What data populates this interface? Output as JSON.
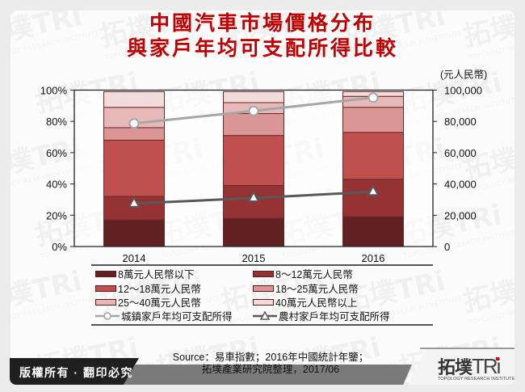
{
  "title": {
    "line1": "中國汽車市場價格分布",
    "line2": "與家戶年均可支配所得比較"
  },
  "chart_data": {
    "type": "bar",
    "subtype": "stacked_100_percent_with_secondary_line",
    "title": "中國汽車市場價格分布與家戶年均可支配所得比較",
    "categories": [
      "2014",
      "2015",
      "2016"
    ],
    "left_axis": {
      "label": "",
      "ticks": [
        "0%",
        "20%",
        "40%",
        "60%",
        "80%",
        "100%"
      ],
      "ylim": [
        0,
        100
      ]
    },
    "right_axis": {
      "label": "(元人民幣)",
      "ticks": [
        "0",
        "20,000",
        "40,000",
        "60,000",
        "80,000",
        "100,000"
      ],
      "ylim": [
        0,
        100000
      ]
    },
    "series": [
      {
        "name": "8萬元人民幣以下",
        "type": "bar",
        "axis": "left",
        "color": "#612122",
        "values": [
          17,
          18,
          19
        ]
      },
      {
        "name": "8～12萬元人民幣",
        "type": "bar",
        "axis": "left",
        "color": "#943234",
        "values": [
          15,
          21,
          24
        ]
      },
      {
        "name": "12～18萬元人民幣",
        "type": "bar",
        "axis": "left",
        "color": "#c0504d",
        "values": [
          36,
          32,
          30
        ]
      },
      {
        "name": "18～25萬元人民幣",
        "type": "bar",
        "axis": "left",
        "color": "#d99694",
        "values": [
          8,
          14,
          16
        ]
      },
      {
        "name": "25～40萬元人民幣",
        "type": "bar",
        "axis": "left",
        "color": "#e6b9b8",
        "values": [
          13,
          7,
          7
        ]
      },
      {
        "name": "40萬元人民幣以上",
        "type": "bar",
        "axis": "left",
        "color": "#f2dcdb",
        "values": [
          10,
          7,
          3
        ]
      },
      {
        "name": "城鎮家戶年均可支配所得",
        "type": "line",
        "axis": "right",
        "marker": "circle",
        "color": "#a6a6a6",
        "values": [
          78700,
          86700,
          95200
        ]
      },
      {
        "name": "農村家戶年均可支配所得",
        "type": "line",
        "axis": "right",
        "marker": "triangle",
        "color": "#595959",
        "values": [
          27500,
          31000,
          35000
        ]
      }
    ],
    "grid": false,
    "legend_position": "bottom"
  },
  "legend": {
    "items": [
      {
        "label": "8萬元人民幣以下",
        "kind": "bar",
        "color": "#612122"
      },
      {
        "label": "8～12萬元人民幣",
        "kind": "bar",
        "color": "#943234"
      },
      {
        "label": "12～18萬元人民幣",
        "kind": "bar",
        "color": "#c0504d"
      },
      {
        "label": "18～25萬元人民幣",
        "kind": "bar",
        "color": "#d99694"
      },
      {
        "label": "25～40萬元人民幣",
        "kind": "bar",
        "color": "#e6b9b8"
      },
      {
        "label": "40萬元人民幣以上",
        "kind": "bar",
        "color": "#f2dcdb"
      },
      {
        "label": "城鎮家戶年均可支配所得",
        "kind": "line-circle",
        "color": "#a6a6a6"
      },
      {
        "label": "農村家戶年均可支配所得",
        "kind": "line-triangle",
        "color": "#595959"
      }
    ]
  },
  "footer": {
    "copyright": "版權所有 · 翻印必究",
    "source_line1": "Source：易車指數；2016年中國統計年鑒；",
    "source_line2": "拓墣產業研究院整理，2017/06",
    "logo_cn": "拓墣",
    "logo_en": "TRi",
    "logo_sub": "TOPOLOGY RESEARCH INSTITUTE"
  },
  "watermark": {
    "text": "拓墣TRi",
    "sub": "TOPOLOGY RESEARCH INSTITUTE"
  }
}
